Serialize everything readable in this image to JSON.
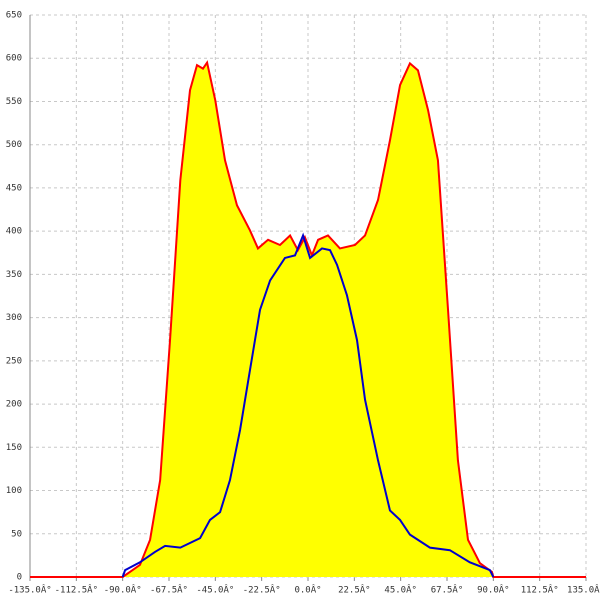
{
  "chart_data": {
    "type": "line",
    "xlim": [
      -135,
      135
    ],
    "ylim": [
      0,
      650
    ],
    "xticks": [
      {
        "value": -135,
        "label": "-135.0Â°"
      },
      {
        "value": -112.5,
        "label": "-112.5Â°"
      },
      {
        "value": -90,
        "label": "-90.0Â°"
      },
      {
        "value": -67.5,
        "label": "-67.5Â°"
      },
      {
        "value": -45,
        "label": "-45.0Â°"
      },
      {
        "value": -22.5,
        "label": "-22.5Â°"
      },
      {
        "value": 0,
        "label": "0.0Â°"
      },
      {
        "value": 22.5,
        "label": "22.5Â°"
      },
      {
        "value": 45,
        "label": "45.0Â°"
      },
      {
        "value": 67.5,
        "label": "67.5Â°"
      },
      {
        "value": 90,
        "label": "90.0Â°"
      },
      {
        "value": 112.5,
        "label": "112.5Â°"
      },
      {
        "value": 135,
        "label": "135.0Â°"
      }
    ],
    "yticks": [
      0,
      50,
      100,
      150,
      200,
      250,
      300,
      350,
      400,
      450,
      500,
      550,
      600,
      650
    ],
    "grid": true,
    "series": [
      {
        "color": "#ff0000",
        "fill": "#ffff00",
        "x": [
          -135,
          -90,
          -81.6,
          -76.7,
          -71.8,
          -67,
          -62,
          -57.3,
          -53.9,
          -51,
          -49,
          -45,
          -40.3,
          -34.5,
          -28.2,
          -24.3,
          -19.4,
          -13.6,
          -8.7,
          -4.9,
          -1.5,
          1.9,
          4.9,
          9.7,
          15.5,
          22.8,
          27.7,
          34,
          39.8,
          44.7,
          49.5,
          53.4,
          58.3,
          63.1,
          68,
          72.8,
          77.7,
          83.5,
          89.3,
          90,
          135
        ],
        "values": [
          0,
          0,
          14,
          43,
          112,
          274,
          459,
          563,
          592,
          588,
          595,
          551,
          482,
          430,
          401,
          380,
          390,
          384,
          395,
          378,
          393,
          372,
          390,
          395,
          380,
          384,
          395,
          436,
          505,
          569,
          594,
          586,
          540,
          482,
          309,
          135,
          43,
          16,
          6,
          0,
          0
        ]
      },
      {
        "color": "#0000cc",
        "x": [
          -90,
          -88.8,
          -81.6,
          -74.3,
          -69.4,
          -62,
          -52.4,
          -47.6,
          -42.7,
          -37.9,
          -33,
          -28.2,
          -23.3,
          -18.4,
          -11.2,
          -6.3,
          -2.4,
          1,
          6.8,
          10.7,
          14.1,
          18.9,
          23.8,
          27.7,
          34,
          39.8,
          44.7,
          49.5,
          59.2,
          68.9,
          78.6,
          88.3,
          90
        ],
        "values": [
          0,
          8,
          17,
          29,
          36,
          34,
          45,
          66,
          75,
          112,
          170,
          239,
          309,
          343,
          369,
          372,
          395,
          369,
          380,
          378,
          361,
          326,
          274,
          205,
          135,
          77,
          66,
          49,
          34,
          31,
          17,
          8,
          0
        ]
      }
    ]
  }
}
